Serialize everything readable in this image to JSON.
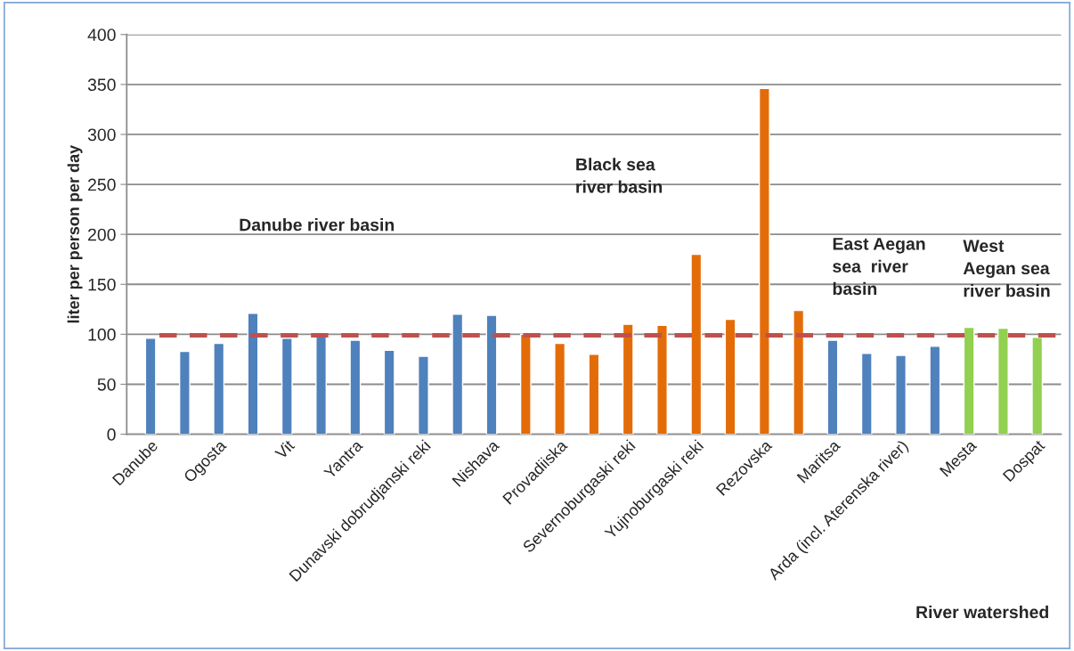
{
  "chart_data": {
    "type": "bar",
    "xlabel": "River watershed",
    "ylabel": "liter per person per day",
    "categories": [
      "Danube",
      null,
      "Ogosta",
      null,
      "Vit",
      null,
      "Yantra",
      null,
      "Dunavski dobrudjanski reki",
      null,
      "Nishava",
      null,
      "Provadiiska",
      null,
      "Severnoburgaski reki",
      null,
      "Yujnoburgaski reki",
      null,
      "Rezovska",
      null,
      "Maritsa",
      null,
      "Arda (incl. Aterenska river)",
      null,
      "Mesta",
      null,
      "Dospat"
    ],
    "values": [
      96,
      83,
      91,
      121,
      96,
      100,
      94,
      84,
      78,
      120,
      119,
      100,
      91,
      80,
      110,
      109,
      180,
      115,
      346,
      124,
      94,
      81,
      79,
      88,
      107,
      106,
      97
    ],
    "colors": [
      "#4f81bd",
      "#4f81bd",
      "#4f81bd",
      "#4f81bd",
      "#4f81bd",
      "#4f81bd",
      "#4f81bd",
      "#4f81bd",
      "#4f81bd",
      "#4f81bd",
      "#4f81bd",
      "#e36c09",
      "#e36c09",
      "#e36c09",
      "#e36c09",
      "#e36c09",
      "#e36c09",
      "#e36c09",
      "#e36c09",
      "#e36c09",
      "#4f81bd",
      "#4f81bd",
      "#4f81bd",
      "#4f81bd",
      "#92d050",
      "#92d050",
      "#92d050"
    ],
    "ylim": [
      0,
      400
    ],
    "yticks": [
      0,
      50,
      100,
      150,
      200,
      250,
      300,
      350,
      400
    ],
    "grid": "y",
    "ref_lines": [
      {
        "axis": "y",
        "value": 99,
        "color": "#c0504d",
        "line_style": "dashed"
      }
    ],
    "annotations": [
      "Danube river basin",
      "Black sea\nriver basin",
      "East Aegan\nsea  river\nbasin",
      "West\nAegan sea\nriver basin"
    ]
  }
}
